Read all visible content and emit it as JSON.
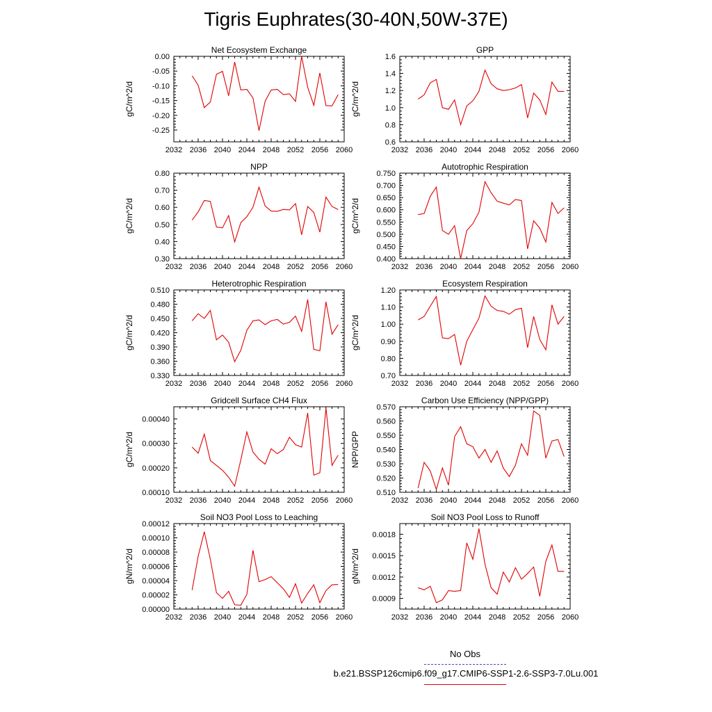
{
  "page": {
    "title": "Tigris Euphrates(30-40N,50W-37E)"
  },
  "legend": {
    "obs_label": "No Obs",
    "obs_color": "#4444cc",
    "case_label": "b.e21.BSSP126cmip6.f09_g17.CMIP6-SSP1-2.6-SSP3-7.0Lu.001",
    "case_color": "#e00000"
  },
  "chart_data": [
    {
      "type": "line",
      "title": "Net Ecosystem Exchange",
      "ylabel": "gC/m^2/d",
      "xlim": [
        2032,
        2060
      ],
      "ylim": [
        -0.29,
        0.0
      ],
      "xticks": [
        2032,
        2036,
        2040,
        2044,
        2048,
        2052,
        2056,
        2060
      ],
      "yticks": [
        0.0,
        -0.05,
        -0.1,
        -0.15,
        -0.2,
        -0.25
      ],
      "yticklabels": [
        "0.00",
        "-0.05",
        "-0.10",
        "-0.15",
        "-0.20",
        "-0.25"
      ],
      "x": [
        2035,
        2036,
        2037,
        2038,
        2039,
        2040,
        2041,
        2042,
        2043,
        2044,
        2045,
        2046,
        2047,
        2048,
        2049,
        2050,
        2051,
        2052,
        2053,
        2054,
        2055,
        2056,
        2057,
        2058,
        2059
      ],
      "series": [
        {
          "color": "#e00000",
          "values": [
            -0.066,
            -0.098,
            -0.174,
            -0.155,
            -0.061,
            -0.051,
            -0.134,
            -0.019,
            -0.114,
            -0.112,
            -0.141,
            -0.252,
            -0.152,
            -0.114,
            -0.112,
            -0.13,
            -0.127,
            -0.153,
            0.0,
            -0.105,
            -0.166,
            -0.056,
            -0.167,
            -0.168,
            -0.13
          ]
        }
      ]
    },
    {
      "type": "line",
      "title": "GPP",
      "ylabel": "gC/m^2/d",
      "xlim": [
        2032,
        2060
      ],
      "ylim": [
        0.6,
        1.6
      ],
      "xticks": [
        2032,
        2036,
        2040,
        2044,
        2048,
        2052,
        2056,
        2060
      ],
      "yticks": [
        0.6,
        0.8,
        1.0,
        1.2,
        1.4,
        1.6
      ],
      "yticklabels": [
        "0.6",
        "0.8",
        "1.0",
        "1.2",
        "1.4",
        "1.6"
      ],
      "x": [
        2035,
        2036,
        2037,
        2038,
        2039,
        2040,
        2041,
        2042,
        2043,
        2044,
        2045,
        2046,
        2047,
        2048,
        2049,
        2050,
        2051,
        2052,
        2053,
        2054,
        2055,
        2056,
        2057,
        2058,
        2059
      ],
      "series": [
        {
          "color": "#e00000",
          "values": [
            1.1,
            1.15,
            1.29,
            1.33,
            1.0,
            0.98,
            1.09,
            0.8,
            1.02,
            1.08,
            1.19,
            1.44,
            1.28,
            1.22,
            1.2,
            1.21,
            1.23,
            1.27,
            0.88,
            1.17,
            1.09,
            0.92,
            1.3,
            1.19,
            1.19
          ]
        }
      ]
    },
    {
      "type": "line",
      "title": "NPP",
      "ylabel": "gC/m^2/d",
      "xlim": [
        2032,
        2060
      ],
      "ylim": [
        0.3,
        0.8
      ],
      "xticks": [
        2032,
        2036,
        2040,
        2044,
        2048,
        2052,
        2056,
        2060
      ],
      "yticks": [
        0.3,
        0.4,
        0.5,
        0.6,
        0.7,
        0.8
      ],
      "yticklabels": [
        "0.30",
        "0.40",
        "0.50",
        "0.60",
        "0.70",
        "0.80"
      ],
      "x": [
        2035,
        2036,
        2037,
        2038,
        2039,
        2040,
        2041,
        2042,
        2043,
        2044,
        2045,
        2046,
        2047,
        2048,
        2049,
        2050,
        2051,
        2052,
        2053,
        2054,
        2055,
        2056,
        2057,
        2058,
        2059
      ],
      "series": [
        {
          "color": "#e00000",
          "values": [
            0.525,
            0.573,
            0.64,
            0.635,
            0.485,
            0.48,
            0.552,
            0.398,
            0.51,
            0.545,
            0.6,
            0.718,
            0.608,
            0.578,
            0.577,
            0.588,
            0.585,
            0.622,
            0.44,
            0.605,
            0.57,
            0.455,
            0.66,
            0.605,
            0.587
          ]
        }
      ]
    },
    {
      "type": "line",
      "title": "Autotrophic Respiration",
      "ylabel": "gC/m^2/d",
      "xlim": [
        2032,
        2060
      ],
      "ylim": [
        0.4,
        0.75
      ],
      "xticks": [
        2032,
        2036,
        2040,
        2044,
        2048,
        2052,
        2056,
        2060
      ],
      "yticks": [
        0.4,
        0.45,
        0.5,
        0.55,
        0.6,
        0.65,
        0.7,
        0.75
      ],
      "yticklabels": [
        "0.400",
        "0.450",
        "0.500",
        "0.550",
        "0.600",
        "0.650",
        "0.700",
        "0.750"
      ],
      "x": [
        2035,
        2036,
        2037,
        2038,
        2039,
        2040,
        2041,
        2042,
        2043,
        2044,
        2045,
        2046,
        2047,
        2048,
        2049,
        2050,
        2051,
        2052,
        2053,
        2054,
        2055,
        2056,
        2057,
        2058,
        2059
      ],
      "series": [
        {
          "color": "#e00000",
          "values": [
            0.58,
            0.585,
            0.655,
            0.693,
            0.515,
            0.5,
            0.535,
            0.4,
            0.515,
            0.543,
            0.59,
            0.715,
            0.67,
            0.635,
            0.627,
            0.62,
            0.642,
            0.638,
            0.44,
            0.555,
            0.525,
            0.468,
            0.63,
            0.585,
            0.608
          ]
        }
      ]
    },
    {
      "type": "line",
      "title": "Heterotrophic Respiration",
      "ylabel": "gC/m^2/d",
      "xlim": [
        2032,
        2060
      ],
      "ylim": [
        0.33,
        0.51
      ],
      "xticks": [
        2032,
        2036,
        2040,
        2044,
        2048,
        2052,
        2056,
        2060
      ],
      "yticks": [
        0.33,
        0.36,
        0.39,
        0.42,
        0.45,
        0.48,
        0.51
      ],
      "yticklabels": [
        "0.330",
        "0.360",
        "0.390",
        "0.420",
        "0.450",
        "0.480",
        "0.510"
      ],
      "x": [
        2035,
        2036,
        2037,
        2038,
        2039,
        2040,
        2041,
        2042,
        2043,
        2044,
        2045,
        2046,
        2047,
        2048,
        2049,
        2050,
        2051,
        2052,
        2053,
        2054,
        2055,
        2056,
        2057,
        2058,
        2059
      ],
      "series": [
        {
          "color": "#e00000",
          "values": [
            0.445,
            0.46,
            0.45,
            0.467,
            0.405,
            0.415,
            0.4,
            0.359,
            0.383,
            0.425,
            0.445,
            0.447,
            0.437,
            0.445,
            0.448,
            0.438,
            0.442,
            0.455,
            0.423,
            0.49,
            0.385,
            0.382,
            0.485,
            0.417,
            0.437
          ]
        }
      ]
    },
    {
      "type": "line",
      "title": "Ecosystem Respiration",
      "ylabel": "gC/m^2/d",
      "xlim": [
        2032,
        2060
      ],
      "ylim": [
        0.7,
        1.2
      ],
      "xticks": [
        2032,
        2036,
        2040,
        2044,
        2048,
        2052,
        2056,
        2060
      ],
      "yticks": [
        0.7,
        0.8,
        0.9,
        1.0,
        1.1,
        1.2
      ],
      "yticklabels": [
        "0.70",
        "0.80",
        "0.90",
        "1.00",
        "1.10",
        "1.20"
      ],
      "x": [
        2035,
        2036,
        2037,
        2038,
        2039,
        2040,
        2041,
        2042,
        2043,
        2044,
        2045,
        2046,
        2047,
        2048,
        2049,
        2050,
        2051,
        2052,
        2053,
        2054,
        2055,
        2056,
        2057,
        2058,
        2059
      ],
      "series": [
        {
          "color": "#e00000",
          "values": [
            1.025,
            1.045,
            1.105,
            1.162,
            0.92,
            0.915,
            0.94,
            0.76,
            0.9,
            0.968,
            1.035,
            1.165,
            1.105,
            1.08,
            1.075,
            1.058,
            1.085,
            1.093,
            0.862,
            1.045,
            0.91,
            0.85,
            1.113,
            1.0,
            1.045
          ]
        }
      ]
    },
    {
      "type": "line",
      "title": "Gridcell Surface CH4 Flux",
      "ylabel": "gC/m^2/d",
      "xlim": [
        2032,
        2060
      ],
      "ylim": [
        0.0001,
        0.00045
      ],
      "xticks": [
        2032,
        2036,
        2040,
        2044,
        2048,
        2052,
        2056,
        2060
      ],
      "yticks": [
        0.0001,
        0.0002,
        0.0003,
        0.0004
      ],
      "yticklabels": [
        "0.00010",
        "0.00020",
        "0.00030",
        "0.00040"
      ],
      "x": [
        2035,
        2036,
        2037,
        2038,
        2039,
        2040,
        2041,
        2042,
        2043,
        2044,
        2045,
        2046,
        2047,
        2048,
        2049,
        2050,
        2051,
        2052,
        2053,
        2054,
        2055,
        2056,
        2057,
        2058,
        2059
      ],
      "series": [
        {
          "color": "#e00000",
          "values": [
            0.000285,
            0.00026,
            0.000338,
            0.00023,
            0.00021,
            0.00019,
            0.000162,
            0.000125,
            0.000232,
            0.000347,
            0.000265,
            0.000235,
            0.000215,
            0.000278,
            0.000258,
            0.000275,
            0.000325,
            0.000295,
            0.000285,
            0.000425,
            0.00017,
            0.00018,
            0.000445,
            0.00021,
            0.000252
          ]
        }
      ]
    },
    {
      "type": "line",
      "title": "Carbon Use Efficiency (NPP/GPP)",
      "ylabel": "NPP/GPP",
      "xlim": [
        2032,
        2060
      ],
      "ylim": [
        0.51,
        0.57
      ],
      "xticks": [
        2032,
        2036,
        2040,
        2044,
        2048,
        2052,
        2056,
        2060
      ],
      "yticks": [
        0.51,
        0.52,
        0.53,
        0.54,
        0.55,
        0.56,
        0.57
      ],
      "yticklabels": [
        "0.510",
        "0.520",
        "0.530",
        "0.540",
        "0.550",
        "0.560",
        "0.570"
      ],
      "x": [
        2035,
        2036,
        2037,
        2038,
        2039,
        2040,
        2041,
        2042,
        2043,
        2044,
        2045,
        2046,
        2047,
        2048,
        2049,
        2050,
        2051,
        2052,
        2053,
        2054,
        2055,
        2056,
        2057,
        2058,
        2059
      ],
      "series": [
        {
          "color": "#e00000",
          "values": [
            0.513,
            0.531,
            0.525,
            0.512,
            0.527,
            0.515,
            0.549,
            0.556,
            0.544,
            0.542,
            0.534,
            0.54,
            0.531,
            0.539,
            0.527,
            0.521,
            0.529,
            0.544,
            0.536,
            0.567,
            0.564,
            0.534,
            0.546,
            0.547,
            0.535
          ]
        }
      ]
    },
    {
      "type": "line",
      "title": "Soil NO3 Pool Loss to Leaching",
      "ylabel": "gN/m^2/d",
      "xlim": [
        2032,
        2060
      ],
      "ylim": [
        0.0,
        0.00012
      ],
      "xticks": [
        2032,
        2036,
        2040,
        2044,
        2048,
        2052,
        2056,
        2060
      ],
      "yticks": [
        0.0,
        2e-05,
        4e-05,
        6e-05,
        8e-05,
        0.0001,
        0.00012
      ],
      "yticklabels": [
        "0.00000",
        "0.00002",
        "0.00004",
        "0.00006",
        "0.00008",
        "0.00010",
        "0.00012"
      ],
      "x": [
        2035,
        2036,
        2037,
        2038,
        2039,
        2040,
        2041,
        2042,
        2043,
        2044,
        2045,
        2046,
        2047,
        2048,
        2049,
        2050,
        2051,
        2052,
        2053,
        2054,
        2055,
        2056,
        2057,
        2058,
        2059
      ],
      "series": [
        {
          "color": "#e00000",
          "values": [
            2.65e-05,
            7.4e-05,
            0.0001085,
            7e-05,
            2.3e-05,
            1.5e-05,
            2.5e-05,
            6e-06,
            5.5e-06,
            2.05e-05,
            8.25e-05,
            3.85e-05,
            4.15e-05,
            4.55e-05,
            3.7e-05,
            2.85e-05,
            1.65e-05,
            3.55e-05,
            8.5e-06,
            2.2e-05,
            3.4e-05,
            9e-06,
            2.6e-05,
            3.4e-05,
            3.45e-05
          ]
        }
      ]
    },
    {
      "type": "line",
      "title": "Soil NO3 Pool Loss to Runoff",
      "ylabel": "gN/m^2/d",
      "xlim": [
        2032,
        2060
      ],
      "ylim": [
        0.00075,
        0.00195
      ],
      "xticks": [
        2032,
        2036,
        2040,
        2044,
        2048,
        2052,
        2056,
        2060
      ],
      "yticks": [
        0.0009,
        0.0012,
        0.0015,
        0.0018
      ],
      "yticklabels": [
        "0.0009",
        "0.0012",
        "0.0015",
        "0.0018"
      ],
      "x": [
        2035,
        2036,
        2037,
        2038,
        2039,
        2040,
        2041,
        2042,
        2043,
        2044,
        2045,
        2046,
        2047,
        2048,
        2049,
        2050,
        2051,
        2052,
        2053,
        2054,
        2055,
        2056,
        2057,
        2058,
        2059
      ],
      "series": [
        {
          "color": "#e00000",
          "values": [
            0.00105,
            0.00102,
            0.00107,
            0.00084,
            0.00088,
            0.00101,
            0.001,
            0.00101,
            0.00168,
            0.00145,
            0.00188,
            0.00138,
            0.00105,
            0.00096,
            0.00127,
            0.00113,
            0.00133,
            0.00117,
            0.00125,
            0.00134,
            0.00093,
            0.00142,
            0.00165,
            0.00128,
            0.00128
          ]
        }
      ]
    }
  ]
}
